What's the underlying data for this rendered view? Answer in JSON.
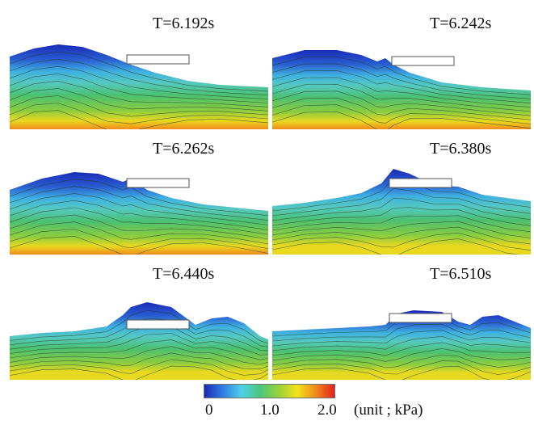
{
  "panels": [
    {
      "time_label": "T=6.192s",
      "column": "left",
      "row": 0
    },
    {
      "time_label": "T=6.242s",
      "column": "right",
      "row": 0
    },
    {
      "time_label": "T=6.262s",
      "column": "left",
      "row": 1
    },
    {
      "time_label": "T=6.380s",
      "column": "right",
      "row": 1
    },
    {
      "time_label": "T=6.440s",
      "column": "left",
      "row": 2
    },
    {
      "time_label": "T=6.510s",
      "column": "right",
      "row": 2
    }
  ],
  "colorbar": {
    "ticks": [
      "0",
      "1.0",
      "2.0"
    ],
    "unit_label": "(unit ; kPa)",
    "colors": [
      "#1a2bb8",
      "#2f7fe0",
      "#4fd0e8",
      "#49c77a",
      "#9ad13a",
      "#f2e21a",
      "#f08a1c",
      "#e0221c"
    ]
  },
  "style": {
    "fluid_top": "#1a2bb8",
    "fluid_mid": "#3fb0e0",
    "fluid_low": "#4cc070",
    "fluid_bottom": "#f0a020",
    "body_outline": "#555555",
    "contour": "#1e3a1e"
  }
}
